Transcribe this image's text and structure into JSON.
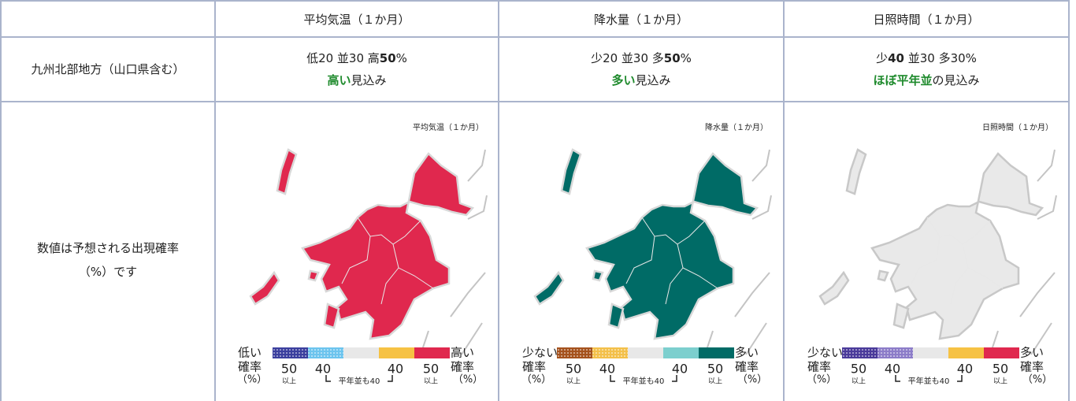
{
  "table": {
    "header": [
      "平均気温（１か月）",
      "降水量（１か月）",
      "日照時間（１か月）"
    ],
    "rows": [
      {
        "label": "九州北部地方（山口県含む）",
        "cells": [
          {
            "probability": [
              {
                "text": "低20 並30 高"
              },
              {
                "text": "50",
                "bold": true
              },
              {
                "text": "%"
              }
            ],
            "outlook": [
              {
                "text": "高い",
                "emph": true
              },
              {
                "text": "見込み"
              }
            ]
          },
          {
            "probability": [
              {
                "text": "少20 並30 多"
              },
              {
                "text": "50",
                "bold": true
              },
              {
                "text": "%"
              }
            ],
            "outlook": [
              {
                "text": "多い",
                "emph": true
              },
              {
                "text": "見込み"
              }
            ]
          },
          {
            "probability": [
              {
                "text": "少"
              },
              {
                "text": "40",
                "bold": true
              },
              {
                "text": " 並30 多30%"
              }
            ],
            "outlook": [
              {
                "text": "ほぼ平年並",
                "emph": true
              },
              {
                "text": "の見込み"
              }
            ]
          }
        ]
      },
      {
        "label": [
          "数値は予想される出現確率",
          "（%）です"
        ],
        "maps": [
          {
            "caption": "平均気温（１か月）",
            "fill": "#e0284e",
            "edge": "#d8d8d8",
            "legend": {
              "low_label": [
                "低い",
                "確率",
                "（%）"
              ],
              "high_label": [
                "高い",
                "確率",
                "（%）"
              ],
              "colors": [
                "#3b3f9e",
                "#6cc4ee",
                "#e8e8e8",
                "#f6c244",
                "#e0284e"
              ],
              "patterned": [
                true,
                true,
                false,
                false,
                false
              ],
              "left": [
                {
                  "value": "50",
                  "note": "以上"
                },
                {
                  "value": "40"
                }
              ],
              "right": [
                {
                  "value": "40"
                },
                {
                  "value": "50",
                  "note": "以上"
                }
              ],
              "normal_note": "平年並も40"
            }
          },
          {
            "caption": "降水量（１か月）",
            "fill": "#006b66",
            "edge": "#d8d8d8",
            "legend": {
              "low_label": [
                "少ない",
                "確率",
                "（%）"
              ],
              "high_label": [
                "多い",
                "確率",
                "（%）"
              ],
              "colors": [
                "#a5521d",
                "#f3c04a",
                "#e8e8e8",
                "#7ccfce",
                "#006b66"
              ],
              "patterned": [
                true,
                true,
                false,
                false,
                false
              ],
              "left": [
                {
                  "value": "50",
                  "note": "以上"
                },
                {
                  "value": "40"
                }
              ],
              "right": [
                {
                  "value": "40"
                },
                {
                  "value": "50",
                  "note": "以上"
                }
              ],
              "normal_note": "平年並も40"
            }
          },
          {
            "caption": "日照時間（１か月）",
            "fill": "#e9e9e9",
            "edge": "#c8c8c8",
            "legend": {
              "low_label": [
                "少ない",
                "確率",
                "（%）"
              ],
              "high_label": [
                "多い",
                "確率",
                "（%）"
              ],
              "colors": [
                "#4a3a9a",
                "#8c7cc8",
                "#e8e8e8",
                "#f6c244",
                "#e0284e"
              ],
              "patterned": [
                true,
                true,
                false,
                false,
                false
              ],
              "left": [
                {
                  "value": "50",
                  "note": "以上"
                },
                {
                  "value": "40"
                }
              ],
              "right": [
                {
                  "value": "40"
                },
                {
                  "value": "50",
                  "note": "以上"
                }
              ],
              "normal_note": "平年並も40"
            }
          }
        ]
      }
    ]
  }
}
